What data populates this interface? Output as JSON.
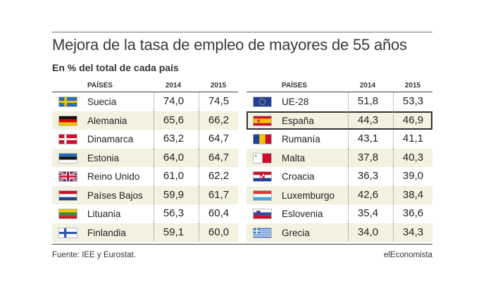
{
  "title": "Mejora de la tasa de empleo de mayores de 55 años",
  "subtitle": "En % del total de cada país",
  "source": "Fuente: IEE y Eurostat.",
  "brand": "elEconomista",
  "colors": {
    "alt_row": "#f3f1e0",
    "rule": "#444444"
  },
  "chart_data": {
    "type": "table",
    "title": "Mejora de la tasa de empleo de mayores de 55 años",
    "subtitle": "En % del total de cada país",
    "columns": [
      "PAÍSES",
      "2014",
      "2015"
    ],
    "left": {
      "headers": {
        "country": "PAÍSES",
        "y2014": "2014",
        "y2015": "2015"
      },
      "rows": [
        {
          "country": "Suecia",
          "flag": "sweden-flag-icon",
          "y2014": "74,0",
          "y2015": "74,5"
        },
        {
          "country": "Alemania",
          "flag": "germany-flag-icon",
          "y2014": "65,6",
          "y2015": "66,2"
        },
        {
          "country": "Dinamarca",
          "flag": "denmark-flag-icon",
          "y2014": "63,2",
          "y2015": "64,7"
        },
        {
          "country": "Estonia",
          "flag": "estonia-flag-icon",
          "y2014": "64,0",
          "y2015": "64,7"
        },
        {
          "country": "Reino Unido",
          "flag": "uk-flag-icon",
          "y2014": "61,0",
          "y2015": "62,2"
        },
        {
          "country": "Países Bajos",
          "flag": "netherlands-flag-icon",
          "y2014": "59,9",
          "y2015": "61,7"
        },
        {
          "country": "Lituania",
          "flag": "lithuania-flag-icon",
          "y2014": "56,3",
          "y2015": "60,4"
        },
        {
          "country": "Finlandia",
          "flag": "finland-flag-icon",
          "y2014": "59,1",
          "y2015": "60,0"
        }
      ]
    },
    "right": {
      "headers": {
        "country": "PAÍSES",
        "y2014": "2014",
        "y2015": "2015"
      },
      "rows": [
        {
          "country": "UE-28",
          "flag": "eu-flag-icon",
          "y2014": "51,8",
          "y2015": "53,3"
        },
        {
          "country": "España",
          "flag": "spain-flag-icon",
          "y2014": "44,3",
          "y2015": "46,9",
          "highlight": true
        },
        {
          "country": "Rumanía",
          "flag": "romania-flag-icon",
          "y2014": "43,1",
          "y2015": "41,1"
        },
        {
          "country": "Malta",
          "flag": "malta-flag-icon",
          "y2014": "37,8",
          "y2015": "40,3"
        },
        {
          "country": "Croacia",
          "flag": "croatia-flag-icon",
          "y2014": "36,3",
          "y2015": "39,0"
        },
        {
          "country": "Luxemburgo",
          "flag": "luxembourg-flag-icon",
          "y2014": "42,6",
          "y2015": "38,4"
        },
        {
          "country": "Eslovenia",
          "flag": "slovenia-flag-icon",
          "y2014": "35,4",
          "y2015": "36,6"
        },
        {
          "country": "Grecia",
          "flag": "greece-flag-icon",
          "y2014": "34,0",
          "y2015": "34,3"
        }
      ]
    }
  }
}
